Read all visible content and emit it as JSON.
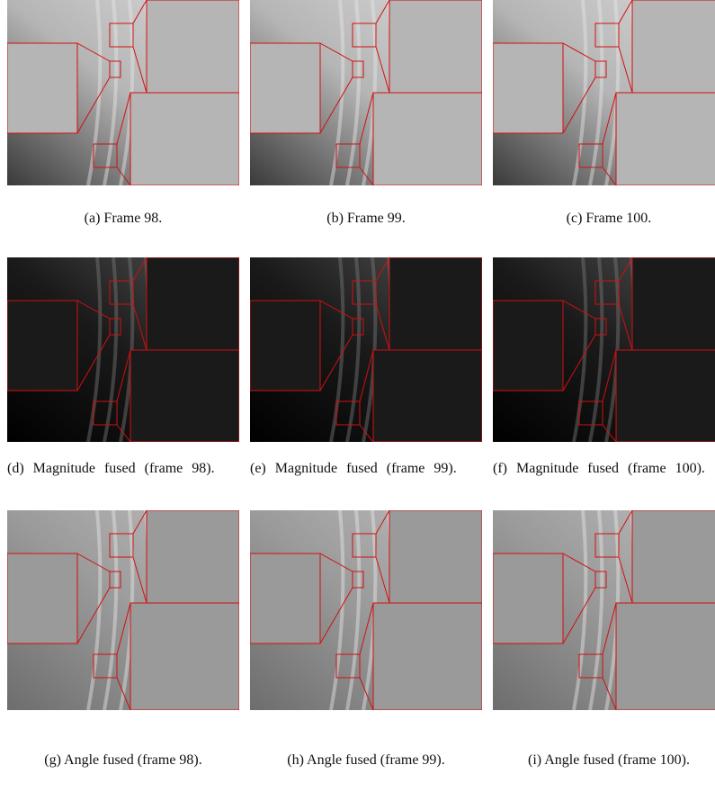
{
  "figure": {
    "rows": [
      {
        "panels": [
          {
            "caption": "(a) Frame 98."
          },
          {
            "caption": "(b) Frame 99."
          },
          {
            "caption": "(c) Frame 100."
          }
        ]
      },
      {
        "panels": [
          {
            "caption": "(d) Magnitude fused (frame 98)."
          },
          {
            "caption": "(e) Magnitude fused (frame 99)."
          },
          {
            "caption": "(f) Magnitude fused (frame 100)."
          }
        ]
      },
      {
        "panels": [
          {
            "caption": "(g) Angle fused (frame 98)."
          },
          {
            "caption": "(h) Angle fused (frame 99)."
          },
          {
            "caption": "(i) Angle fused (frame 100)."
          }
        ]
      }
    ]
  }
}
